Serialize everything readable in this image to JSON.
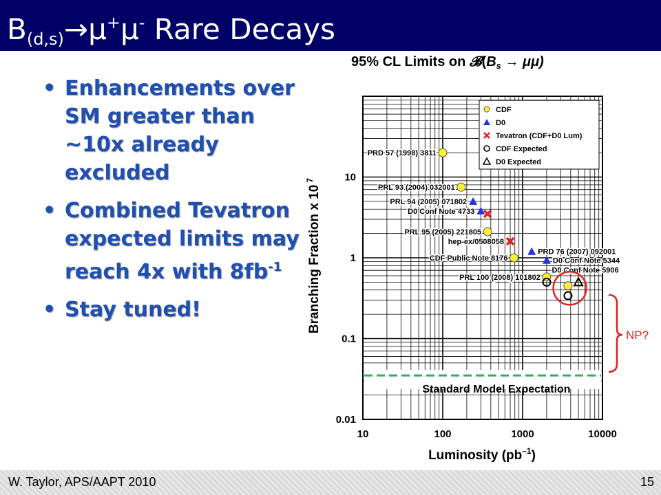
{
  "slide": {
    "title_main": "B",
    "title_sub": "(d,s)",
    "title_arrow": "→μ",
    "title_sup_plus": "+",
    "title_mu2": "μ",
    "title_sup_minus": "-",
    "title_rest": " Rare Decays",
    "title_bar_color": "#000066",
    "bullets": [
      {
        "text": "Enhancements over SM greater than ~10x already excluded"
      },
      {
        "text": "Combined Tevatron expected limits may reach 4x with 8fb",
        "sup": "-1"
      },
      {
        "text": "Stay tuned!"
      }
    ],
    "bullet_color": "#1f4fb0",
    "footer_left": "W. Taylor, APS/AAPT 2010",
    "footer_right": "15"
  },
  "chart_data": {
    "type": "scatter",
    "title_prefix": "95% CL Limits on ",
    "title_symbol": "𝓑",
    "title_open": "(",
    "title_b": "B",
    "title_s": "s",
    "title_arrow": " → μμ)",
    "xlabel_main": "Luminosity (pb",
    "xlabel_sup": "–1",
    "xlabel_close": ")",
    "ylabel_main": "Branching Fraction x 10",
    "ylabel_sup": "7",
    "x_scale": "log",
    "y_scale": "log",
    "xlim": [
      10,
      10000
    ],
    "ylim": [
      0.01,
      100
    ],
    "x_tick_labels": [
      "10",
      "100",
      "1000",
      "10000"
    ],
    "x_ticks": [
      10,
      100,
      1000,
      10000
    ],
    "y_tick_labels": [
      "0.01",
      "0.1",
      "1",
      "10"
    ],
    "y_ticks": [
      0.01,
      0.1,
      1,
      10
    ],
    "grid": true,
    "legend_position": "top-right",
    "legend": [
      {
        "label": "CDF",
        "marker": "circle-yellow"
      },
      {
        "label": "D0",
        "marker": "triangle-blue"
      },
      {
        "label": "Tevatron (CDF+D0 Lum)",
        "marker": "x-red"
      },
      {
        "label": "CDF Expected",
        "marker": "circle-open"
      },
      {
        "label": "D0 Expected",
        "marker": "triangle-open"
      }
    ],
    "points": [
      {
        "x": 100,
        "y": 20,
        "marker": "circle-yellow",
        "label": "PRD 57 (1998) 3811",
        "label_side": "left"
      },
      {
        "x": 170,
        "y": 7.5,
        "marker": "circle-yellow",
        "label": "PRL 93 (2004) 032001",
        "label_side": "left"
      },
      {
        "x": 240,
        "y": 5.0,
        "marker": "triangle-blue",
        "label": "PRL 94 (2005) 071802",
        "label_side": "left"
      },
      {
        "x": 300,
        "y": 3.8,
        "marker": "triangle-blue",
        "label": "D0 Conf Note 4733",
        "label_side": "left"
      },
      {
        "x": 364,
        "y": 3.5,
        "marker": "x-red",
        "label": "",
        "label_side": "left"
      },
      {
        "x": 364,
        "y": 2.1,
        "marker": "circle-yellow",
        "label": "PRL 95 (2005) 221805",
        "label_side": "left"
      },
      {
        "x": 700,
        "y": 1.6,
        "marker": "x-red",
        "label": "hep-ex/0508058",
        "label_side": "left"
      },
      {
        "x": 780,
        "y": 1.0,
        "marker": "circle-yellow",
        "label": "CDF Public Note 8176",
        "label_side": "left"
      },
      {
        "x": 1300,
        "y": 1.2,
        "marker": "triangle-blue",
        "label": "PRD 76 (2007) 092001",
        "label_side": "right"
      },
      {
        "x": 2000,
        "y": 0.93,
        "marker": "triangle-blue",
        "label": "D0 Conf Note 5344",
        "label_side": "right"
      },
      {
        "x": 2000,
        "y": 0.58,
        "marker": "circle-yellow",
        "label": "PRL 100 (2008) 101802",
        "label_side": "left"
      },
      {
        "x": 2000,
        "y": 0.5,
        "marker": "circle-open",
        "label": "",
        "label_side": "left"
      },
      {
        "x": 3700,
        "y": 0.45,
        "marker": "circle-yellow",
        "label": "",
        "label_side": "left"
      },
      {
        "x": 3700,
        "y": 0.34,
        "marker": "circle-open",
        "label": "",
        "label_side": "left"
      },
      {
        "x": 5000,
        "y": 0.5,
        "marker": "triangle-open",
        "label": "D0 Conf Note 5906",
        "label_side": "above"
      }
    ],
    "sm_line": {
      "y": 0.035,
      "label": "Standard Model Expectation",
      "color": "#33aa66"
    },
    "highlight_circle": {
      "x": 3900,
      "y": 0.42,
      "color": "#e02020"
    },
    "np_label": "NP?",
    "np_color": "#e02020"
  }
}
